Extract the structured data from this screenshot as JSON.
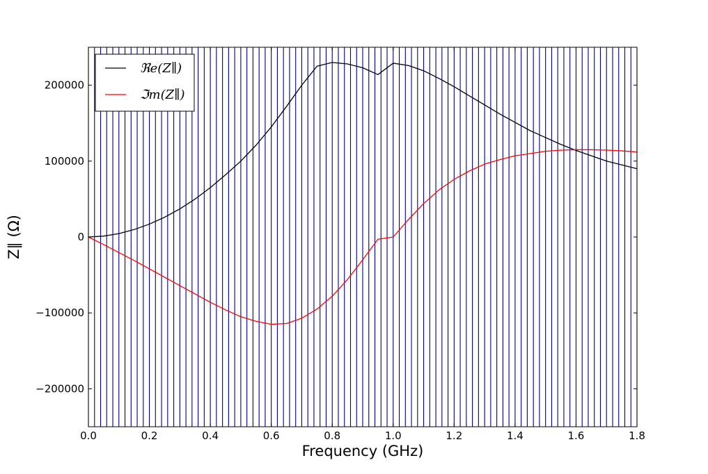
{
  "chart_data": {
    "type": "line",
    "title": "",
    "xlabel": "Frequency (GHz)",
    "ylabel": "Z∥ (Ω)",
    "xlim": [
      0.0,
      1.8
    ],
    "ylim": [
      -250000,
      250000
    ],
    "x_ticks": [
      0.0,
      0.2,
      0.4,
      0.6,
      0.8,
      1.0,
      1.2,
      1.4,
      1.6,
      1.8
    ],
    "x_tick_labels": [
      "0.0",
      "0.2",
      "0.4",
      "0.6",
      "0.8",
      "1.0",
      "1.2",
      "1.4",
      "1.6",
      "1.8"
    ],
    "y_ticks": [
      -200000,
      -100000,
      0,
      100000,
      200000
    ],
    "y_tick_labels": [
      "−200000",
      "−100000",
      "0",
      "100000",
      "200000"
    ],
    "legend_placement": "top-left",
    "vertical_lines": {
      "color": "#000080",
      "x_start": 0.0,
      "x_end": 1.8,
      "spacing": 0.02
    },
    "series": [
      {
        "name": "ℜe(Z∥)",
        "color": "#000000",
        "x": [
          0.0,
          0.05,
          0.1,
          0.15,
          0.2,
          0.25,
          0.3,
          0.35,
          0.4,
          0.45,
          0.5,
          0.55,
          0.6,
          0.65,
          0.7,
          0.75,
          0.8,
          0.85,
          0.9,
          0.95,
          1.0,
          1.05,
          1.1,
          1.15,
          1.2,
          1.25,
          1.3,
          1.35,
          1.4,
          1.45,
          1.5,
          1.55,
          1.6,
          1.65,
          1.7,
          1.75,
          1.8
        ],
        "values": [
          0,
          1200,
          4500,
          9800,
          17000,
          26000,
          37000,
          50000,
          65000,
          82000,
          100000,
          121000,
          145000,
          172000,
          200000,
          225000,
          230000,
          228000,
          223000,
          214000,
          229000,
          226000,
          219000,
          209000,
          198000,
          186000,
          174000,
          162000,
          151000,
          140000,
          131000,
          122000,
          114000,
          107000,
          100000,
          95000,
          90000
        ]
      },
      {
        "name": "ℑm(Z∥)",
        "color": "#ff0000",
        "x": [
          0.0,
          0.05,
          0.1,
          0.15,
          0.2,
          0.25,
          0.3,
          0.35,
          0.4,
          0.45,
          0.5,
          0.55,
          0.6,
          0.65,
          0.7,
          0.75,
          0.8,
          0.85,
          0.9,
          0.95,
          1.0,
          1.05,
          1.1,
          1.15,
          1.2,
          1.25,
          1.3,
          1.35,
          1.4,
          1.45,
          1.5,
          1.55,
          1.6,
          1.65,
          1.7,
          1.75,
          1.8
        ],
        "values": [
          0,
          -10000,
          -20500,
          -31000,
          -42000,
          -53000,
          -64000,
          -75000,
          -86000,
          -96000,
          -105000,
          -111000,
          -115000,
          -114000,
          -107000,
          -95000,
          -78000,
          -56000,
          -30000,
          -3000,
          0,
          23000,
          44000,
          62000,
          76000,
          87000,
          96000,
          102000,
          107000,
          110000,
          113000,
          114500,
          115000,
          115000,
          114500,
          113500,
          112000
        ]
      }
    ]
  }
}
